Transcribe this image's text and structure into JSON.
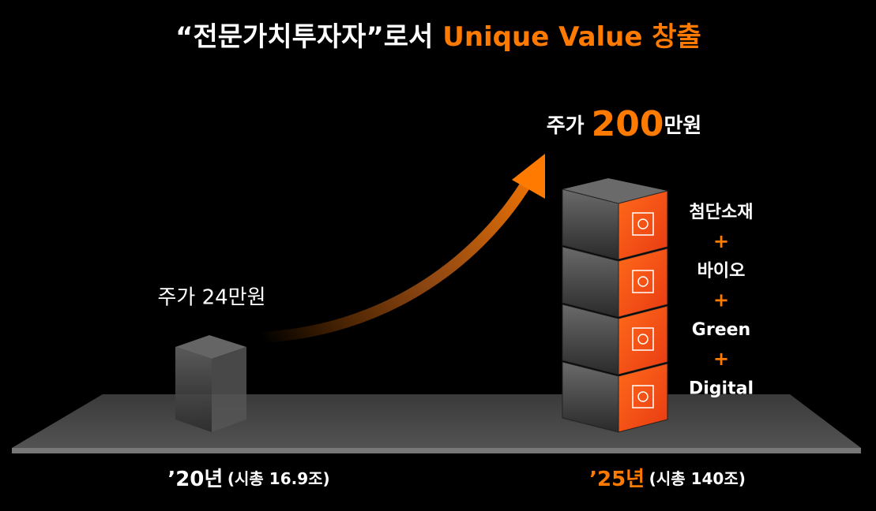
{
  "title": {
    "lead": "“전문가치투자자”로서",
    "highlight": "Unique Value 창출"
  },
  "left": {
    "price": "주가 24만원",
    "year": "’20년",
    "cap": "(시총 16.9조)"
  },
  "right": {
    "price_prefix": "주가",
    "price_value": "200",
    "price_suffix": "만원",
    "year": "’25년",
    "cap": "(시총 140조)",
    "areas": [
      "첨단소재",
      "바이오",
      "Green",
      "Digital"
    ],
    "joiner": "+"
  }
}
